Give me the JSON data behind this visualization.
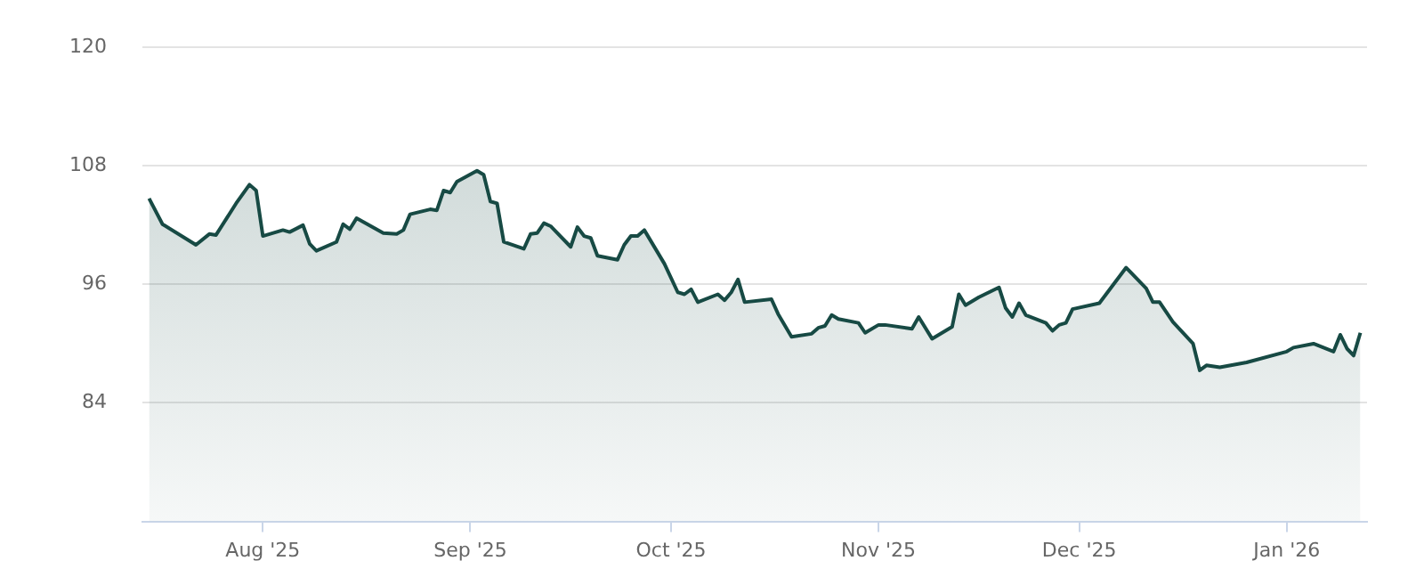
{
  "chart_data": {
    "type": "area",
    "x": [
      "2025-07-15",
      "2025-07-17",
      "2025-07-22",
      "2025-07-24",
      "2025-07-25",
      "2025-07-28",
      "2025-07-30",
      "2025-07-31",
      "2025-08-01",
      "2025-08-04",
      "2025-08-05",
      "2025-08-07",
      "2025-08-08",
      "2025-08-09",
      "2025-08-12",
      "2025-08-13",
      "2025-08-14",
      "2025-08-15",
      "2025-08-19",
      "2025-08-21",
      "2025-08-22",
      "2025-08-23",
      "2025-08-26",
      "2025-08-27",
      "2025-08-28",
      "2025-08-29",
      "2025-08-30",
      "2025-09-02",
      "2025-09-03",
      "2025-09-04",
      "2025-09-05",
      "2025-09-06",
      "2025-09-09",
      "2025-09-10",
      "2025-09-11",
      "2025-09-12",
      "2025-09-13",
      "2025-09-16",
      "2025-09-17",
      "2025-09-18",
      "2025-09-19",
      "2025-09-20",
      "2025-09-23",
      "2025-09-24",
      "2025-09-25",
      "2025-09-26",
      "2025-09-27",
      "2025-09-30",
      "2025-10-02",
      "2025-10-03",
      "2025-10-04",
      "2025-10-05",
      "2025-10-08",
      "2025-10-09",
      "2025-10-10",
      "2025-10-11",
      "2025-10-12",
      "2025-10-16",
      "2025-10-17",
      "2025-10-19",
      "2025-10-22",
      "2025-10-23",
      "2025-10-24",
      "2025-10-25",
      "2025-10-26",
      "2025-10-29",
      "2025-10-30",
      "2025-11-01",
      "2025-11-02",
      "2025-11-06",
      "2025-11-07",
      "2025-11-09",
      "2025-11-12",
      "2025-11-13",
      "2025-11-14",
      "2025-11-16",
      "2025-11-19",
      "2025-11-20",
      "2025-11-21",
      "2025-11-22",
      "2025-11-23",
      "2025-11-26",
      "2025-11-27",
      "2025-11-28",
      "2025-11-29",
      "2025-11-30",
      "2025-12-04",
      "2025-12-08",
      "2025-12-11",
      "2025-12-12",
      "2025-12-13",
      "2025-12-15",
      "2025-12-18",
      "2025-12-19",
      "2025-12-20",
      "2025-12-22",
      "2025-12-26",
      "2026-01-01",
      "2026-01-02",
      "2026-01-05",
      "2026-01-08",
      "2026-01-09",
      "2026-01-10",
      "2026-01-11",
      "2026-01-12"
    ],
    "series": [
      {
        "color": "#174a44",
        "values": [
          104.7,
          102.1,
          100.0,
          101.1,
          101.0,
          104.2,
          106.1,
          105.5,
          100.9,
          101.5,
          101.3,
          102.0,
          100.1,
          99.4,
          100.3,
          102.1,
          101.6,
          102.7,
          101.2,
          101.1,
          101.5,
          103.1,
          103.6,
          103.5,
          105.5,
          105.3,
          106.4,
          107.5,
          107.1,
          104.4,
          104.2,
          100.3,
          99.6,
          101.1,
          101.2,
          102.2,
          101.9,
          99.8,
          101.8,
          100.9,
          100.7,
          98.9,
          98.5,
          100.0,
          100.9,
          100.9,
          101.5,
          98.1,
          95.2,
          95.0,
          95.5,
          94.2,
          95.0,
          94.4,
          95.2,
          96.5,
          94.2,
          94.5,
          93.0,
          90.7,
          91.0,
          91.6,
          91.8,
          92.9,
          92.5,
          92.1,
          91.1,
          91.9,
          91.9,
          91.5,
          92.7,
          90.5,
          91.7,
          95.0,
          93.9,
          94.7,
          95.7,
          93.6,
          92.7,
          94.1,
          92.9,
          92.1,
          91.3,
          91.9,
          92.1,
          93.5,
          94.1,
          97.7,
          95.6,
          94.2,
          94.2,
          92.2,
          90.0,
          87.3,
          87.8,
          87.6,
          88.1,
          89.2,
          89.6,
          90.0,
          89.2,
          90.9,
          89.5,
          88.8,
          91.1
        ]
      }
    ],
    "xlim": [
      "2025-07-14",
      "2026-01-13"
    ],
    "xticks": [
      {
        "value": "2025-08-01",
        "label": "Aug '25"
      },
      {
        "value": "2025-09-01",
        "label": "Sep '25"
      },
      {
        "value": "2025-10-01",
        "label": "Oct '25"
      },
      {
        "value": "2025-11-01",
        "label": "Nov '25"
      },
      {
        "value": "2025-12-01",
        "label": "Dec '25"
      },
      {
        "value": "2026-01-01",
        "label": "Jan '26"
      }
    ],
    "ylim": [
      72,
      120
    ],
    "yticks": [
      84,
      96,
      108,
      120
    ],
    "grid": "y",
    "legend": false,
    "marker": "none",
    "line_style": "solid"
  }
}
